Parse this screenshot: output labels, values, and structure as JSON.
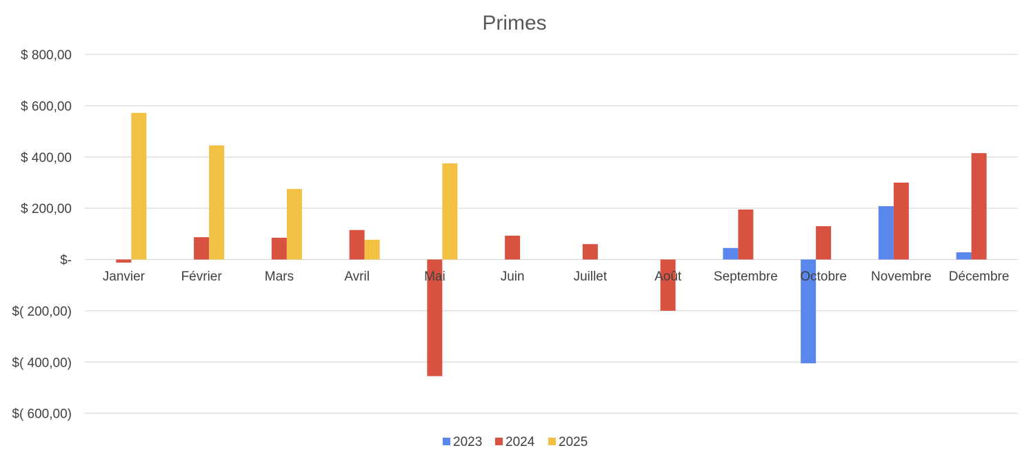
{
  "chart_data": {
    "type": "bar",
    "title": "Primes",
    "xlabel": "",
    "ylabel": "",
    "categories": [
      "Janvier",
      "Février",
      "Mars",
      "Avril",
      "Mai",
      "Juin",
      "Juillet",
      "Août",
      "Septembre",
      "Octobre",
      "Novembre",
      "Décembre"
    ],
    "series": [
      {
        "name": "2023",
        "color": "#5a87ec",
        "values": [
          null,
          null,
          null,
          null,
          null,
          null,
          null,
          null,
          45,
          -405,
          208,
          28
        ]
      },
      {
        "name": "2024",
        "color": "#d95140",
        "values": [
          -12,
          87,
          85,
          115,
          -455,
          93,
          60,
          -200,
          195,
          130,
          300,
          415
        ]
      },
      {
        "name": "2025",
        "color": "#f2c042",
        "values": [
          572,
          445,
          275,
          77,
          375,
          null,
          null,
          null,
          null,
          null,
          null,
          null
        ]
      }
    ],
    "ylim": [
      -600,
      800
    ],
    "y_ticks": [
      800,
      600,
      400,
      200,
      0,
      -200,
      -400,
      -600
    ],
    "y_tick_labels": [
      "$ 800,00",
      "$ 600,00",
      "$ 400,00",
      "$ 200,00",
      "$-",
      "$( 200,00)",
      "$( 400,00)",
      "$( 600,00)"
    ],
    "grid": true,
    "legend_position": "bottom"
  }
}
